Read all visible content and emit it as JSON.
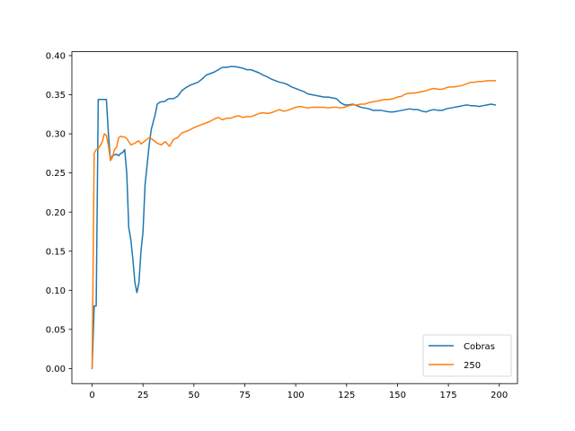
{
  "chart_data": {
    "type": "line",
    "title": "",
    "xlabel": "",
    "ylabel": "",
    "xlim": [
      -9.95,
      208.95
    ],
    "ylim": [
      -0.0193,
      0.405
    ],
    "xticks": [
      0,
      25,
      50,
      75,
      100,
      125,
      150,
      175,
      200
    ],
    "xtick_labels": [
      "0",
      "25",
      "50",
      "75",
      "100",
      "125",
      "150",
      "175",
      "200"
    ],
    "yticks": [
      0.0,
      0.05,
      0.1,
      0.15,
      0.2,
      0.25,
      0.3,
      0.35,
      0.4
    ],
    "ytick_labels": [
      "0.00",
      "0.05",
      "0.10",
      "0.15",
      "0.20",
      "0.25",
      "0.30",
      "0.35",
      "0.40"
    ],
    "grid": false,
    "legend_position": "bottom-right",
    "series": [
      {
        "name": "Cobras",
        "color": "#1f77b4",
        "x": [
          0,
          1,
          2,
          3,
          4,
          5,
          6,
          7,
          8,
          9,
          10,
          11,
          12,
          13,
          14,
          15,
          16,
          17,
          18,
          19,
          20,
          21,
          22,
          23,
          24,
          25,
          26,
          27,
          28,
          29,
          30,
          31,
          32,
          33,
          34,
          35,
          36,
          37,
          38,
          40,
          42,
          44,
          46,
          48,
          50,
          52,
          54,
          56,
          58,
          60,
          62,
          64,
          66,
          68,
          70,
          72,
          74,
          76,
          78,
          80,
          82,
          84,
          86,
          88,
          90,
          92,
          94,
          96,
          98,
          100,
          102,
          104,
          106,
          108,
          110,
          112,
          114,
          116,
          118,
          120,
          122,
          124,
          126,
          128,
          130,
          132,
          134,
          136,
          138,
          140,
          142,
          144,
          146,
          148,
          150,
          152,
          154,
          156,
          158,
          160,
          162,
          164,
          166,
          168,
          170,
          172,
          174,
          176,
          178,
          180,
          182,
          184,
          186,
          188,
          190,
          192,
          194,
          196,
          198
        ],
        "y": [
          0.0,
          0.08,
          0.08,
          0.344,
          0.344,
          0.344,
          0.344,
          0.344,
          0.3,
          0.266,
          0.272,
          0.273,
          0.274,
          0.272,
          0.275,
          0.276,
          0.28,
          0.25,
          0.18,
          0.165,
          0.14,
          0.11,
          0.097,
          0.11,
          0.15,
          0.175,
          0.235,
          0.26,
          0.285,
          0.305,
          0.315,
          0.325,
          0.338,
          0.34,
          0.341,
          0.341,
          0.342,
          0.344,
          0.345,
          0.345,
          0.348,
          0.355,
          0.359,
          0.362,
          0.364,
          0.366,
          0.37,
          0.375,
          0.377,
          0.379,
          0.382,
          0.385,
          0.385,
          0.386,
          0.386,
          0.385,
          0.384,
          0.382,
          0.382,
          0.38,
          0.378,
          0.375,
          0.373,
          0.37,
          0.368,
          0.366,
          0.365,
          0.363,
          0.36,
          0.358,
          0.356,
          0.354,
          0.351,
          0.35,
          0.349,
          0.348,
          0.347,
          0.347,
          0.346,
          0.345,
          0.34,
          0.337,
          0.337,
          0.338,
          0.336,
          0.334,
          0.333,
          0.332,
          0.33,
          0.33,
          0.33,
          0.329,
          0.328,
          0.328,
          0.329,
          0.33,
          0.331,
          0.332,
          0.331,
          0.331,
          0.329,
          0.328,
          0.33,
          0.331,
          0.33,
          0.33,
          0.332,
          0.333,
          0.334,
          0.335,
          0.336,
          0.337,
          0.336,
          0.336,
          0.335,
          0.336,
          0.337,
          0.338,
          0.337
        ]
      },
      {
        "name": "250",
        "color": "#ff7f0e",
        "x": [
          0,
          1,
          2,
          3,
          4,
          5,
          6,
          7,
          8,
          9,
          10,
          11,
          12,
          13,
          14,
          15,
          16,
          17,
          18,
          19,
          20,
          21,
          22,
          23,
          24,
          25,
          26,
          27,
          28,
          29,
          30,
          31,
          32,
          33,
          34,
          35,
          36,
          37,
          38,
          40,
          42,
          44,
          46,
          48,
          50,
          52,
          54,
          56,
          58,
          60,
          62,
          64,
          66,
          68,
          70,
          72,
          74,
          76,
          78,
          80,
          82,
          84,
          86,
          88,
          90,
          92,
          94,
          96,
          98,
          100,
          102,
          104,
          106,
          108,
          110,
          112,
          114,
          116,
          118,
          120,
          122,
          124,
          126,
          128,
          130,
          132,
          134,
          136,
          138,
          140,
          142,
          144,
          146,
          148,
          150,
          152,
          154,
          156,
          158,
          160,
          162,
          164,
          166,
          168,
          170,
          172,
          174,
          176,
          178,
          180,
          182,
          184,
          186,
          188,
          190,
          192,
          194,
          196,
          198
        ],
        "y": [
          0.0,
          0.275,
          0.28,
          0.281,
          0.285,
          0.29,
          0.3,
          0.298,
          0.285,
          0.266,
          0.27,
          0.28,
          0.283,
          0.295,
          0.297,
          0.296,
          0.296,
          0.294,
          0.29,
          0.286,
          0.287,
          0.288,
          0.29,
          0.291,
          0.287,
          0.289,
          0.291,
          0.293,
          0.295,
          0.294,
          0.292,
          0.29,
          0.288,
          0.287,
          0.286,
          0.288,
          0.29,
          0.287,
          0.284,
          0.293,
          0.295,
          0.301,
          0.303,
          0.305,
          0.308,
          0.31,
          0.312,
          0.314,
          0.316,
          0.319,
          0.321,
          0.318,
          0.32,
          0.32,
          0.322,
          0.323,
          0.321,
          0.322,
          0.322,
          0.324,
          0.326,
          0.327,
          0.326,
          0.327,
          0.329,
          0.331,
          0.329,
          0.33,
          0.332,
          0.334,
          0.335,
          0.334,
          0.333,
          0.334,
          0.334,
          0.334,
          0.334,
          0.333,
          0.334,
          0.334,
          0.333,
          0.334,
          0.336,
          0.337,
          0.337,
          0.338,
          0.338,
          0.34,
          0.341,
          0.342,
          0.343,
          0.344,
          0.344,
          0.345,
          0.347,
          0.348,
          0.351,
          0.352,
          0.352,
          0.353,
          0.354,
          0.355,
          0.357,
          0.358,
          0.357,
          0.357,
          0.359,
          0.36,
          0.36,
          0.361,
          0.362,
          0.364,
          0.366,
          0.366,
          0.367,
          0.367,
          0.368,
          0.368,
          0.368
        ]
      }
    ]
  }
}
